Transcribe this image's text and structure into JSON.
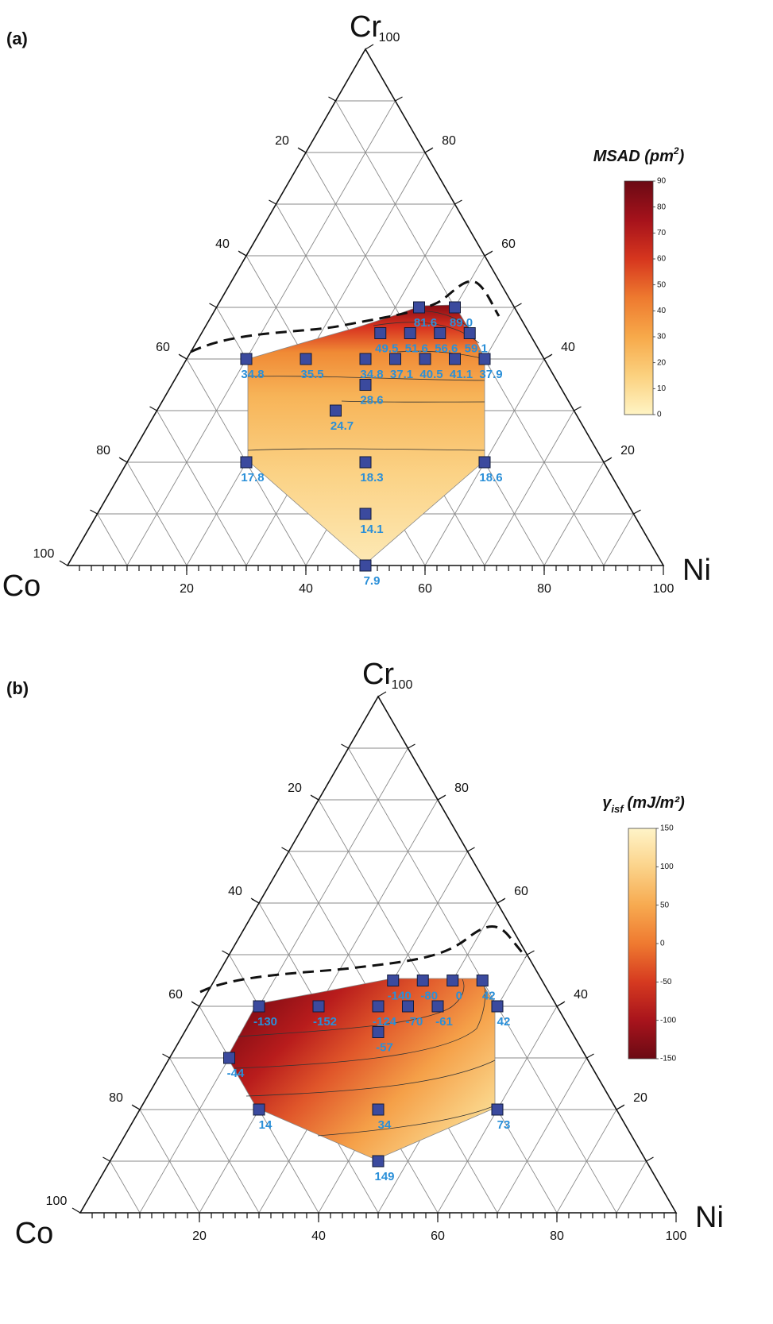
{
  "chart_data": [
    {
      "type": "ternary",
      "panel_label": "(a)",
      "vertex_labels": {
        "top": "Cr",
        "left": "Co",
        "right": "Ni"
      },
      "ni": [
        10,
        20,
        30,
        35,
        40,
        45,
        50,
        32.5,
        30,
        30,
        35,
        40,
        45,
        34,
        40,
        20,
        40,
        60,
        45,
        50
      ],
      "cr": [
        40,
        40,
        40,
        40,
        40,
        40,
        40,
        35,
        30,
        45,
        45,
        45,
        45,
        50,
        50,
        20,
        20,
        20,
        10,
        0
      ],
      "values": [
        34.8,
        35.5,
        34.8,
        37.1,
        40.5,
        41.1,
        37.9,
        28.6,
        24.7,
        49.5,
        51.6,
        56.6,
        59.1,
        81.6,
        89.0,
        17.8,
        18.3,
        18.6,
        14.1,
        7.9
      ],
      "value_labels": [
        "34.8",
        "35.5",
        "34.8",
        "37.1",
        "40.5",
        "41.1",
        "37.9",
        "28.6",
        "24.7",
        "49.5",
        "51.6",
        "56.6",
        "59.1",
        "81.6",
        "89.0",
        "17.8",
        "18.3",
        "18.6",
        "14.1",
        "7.9"
      ],
      "ni_ticks": [
        20,
        40,
        60,
        80,
        100
      ],
      "co_ticks": [
        20,
        40,
        60,
        80,
        100
      ],
      "cr_ticks": [
        20,
        40,
        60,
        80,
        100
      ],
      "gridlines": [
        10,
        20,
        30,
        40,
        50,
        60,
        70,
        80,
        90
      ],
      "minor_ticks": [
        2,
        4,
        6,
        8,
        10,
        12,
        14,
        16,
        18,
        20,
        22,
        24,
        26,
        28,
        30,
        32,
        34,
        36,
        38,
        40,
        42,
        44,
        46,
        48,
        50,
        52,
        54,
        56,
        58,
        60,
        62,
        64,
        66,
        68,
        70,
        72,
        74,
        76,
        78,
        80,
        82,
        84,
        86,
        88,
        90,
        92,
        94,
        96,
        98
      ],
      "marker_color": "#3b4a9e",
      "colorbar": {
        "title_parts": [
          {
            "text": "MSAD (pm"
          },
          {
            "text": "2",
            "sup": true
          },
          {
            "text": ")"
          }
        ],
        "lim": [
          0,
          90
        ],
        "ticks": [
          0,
          10,
          20,
          30,
          40,
          50,
          60,
          70,
          80,
          90
        ],
        "colormap": [
          "#fff4c4",
          "#fbd17f",
          "#f7a94a",
          "#ee7a2f",
          "#d6361e",
          "#a5121b",
          "#6b0a14"
        ]
      }
    },
    {
      "type": "ternary",
      "panel_label": "(b)",
      "vertex_labels": {
        "top": "Cr",
        "left": "Co",
        "right": "Ni"
      },
      "ni": [
        10,
        20,
        30,
        35,
        40,
        50,
        30,
        35,
        40,
        45,
        32.5,
        10,
        20,
        40,
        60,
        45
      ],
      "cr": [
        40,
        40,
        40,
        40,
        40,
        40,
        45,
        45,
        45,
        45,
        35,
        30,
        20,
        20,
        20,
        10
      ],
      "values": [
        -130,
        -152,
        -124,
        -70,
        -61,
        42,
        -140,
        -80,
        0,
        42,
        -57,
        -44,
        14,
        34,
        73,
        149
      ],
      "ni_ticks": [
        20,
        40,
        60,
        80,
        100
      ],
      "co_ticks": [
        20,
        40,
        60,
        80,
        100
      ],
      "cr_ticks": [
        20,
        40,
        60,
        80,
        100
      ],
      "gridlines": [
        10,
        20,
        30,
        40,
        50,
        60,
        70,
        80,
        90
      ],
      "minor_ticks": [
        2,
        4,
        6,
        8,
        10,
        12,
        14,
        16,
        18,
        20,
        22,
        24,
        26,
        28,
        30,
        32,
        34,
        36,
        38,
        40,
        42,
        44,
        46,
        48,
        50,
        52,
        54,
        56,
        58,
        60,
        62,
        64,
        66,
        68,
        70,
        72,
        74,
        76,
        78,
        80,
        82,
        84,
        86,
        88,
        90,
        92,
        94,
        96,
        98
      ],
      "marker_color": "#3b4a9e",
      "colorbar": {
        "title_parts": [
          {
            "text": "γ"
          },
          {
            "text": "isf",
            "sub": true
          },
          {
            "text": "(mJ/m²)"
          }
        ],
        "lim": [
          -150,
          150
        ],
        "ticks": [
          -150,
          -100,
          -50,
          0,
          50,
          100,
          150
        ],
        "colormap": [
          "#6b0a14",
          "#a8141c",
          "#d63a20",
          "#ef7a30",
          "#f7aa50",
          "#fbd38a",
          "#fff4c8"
        ]
      }
    }
  ]
}
